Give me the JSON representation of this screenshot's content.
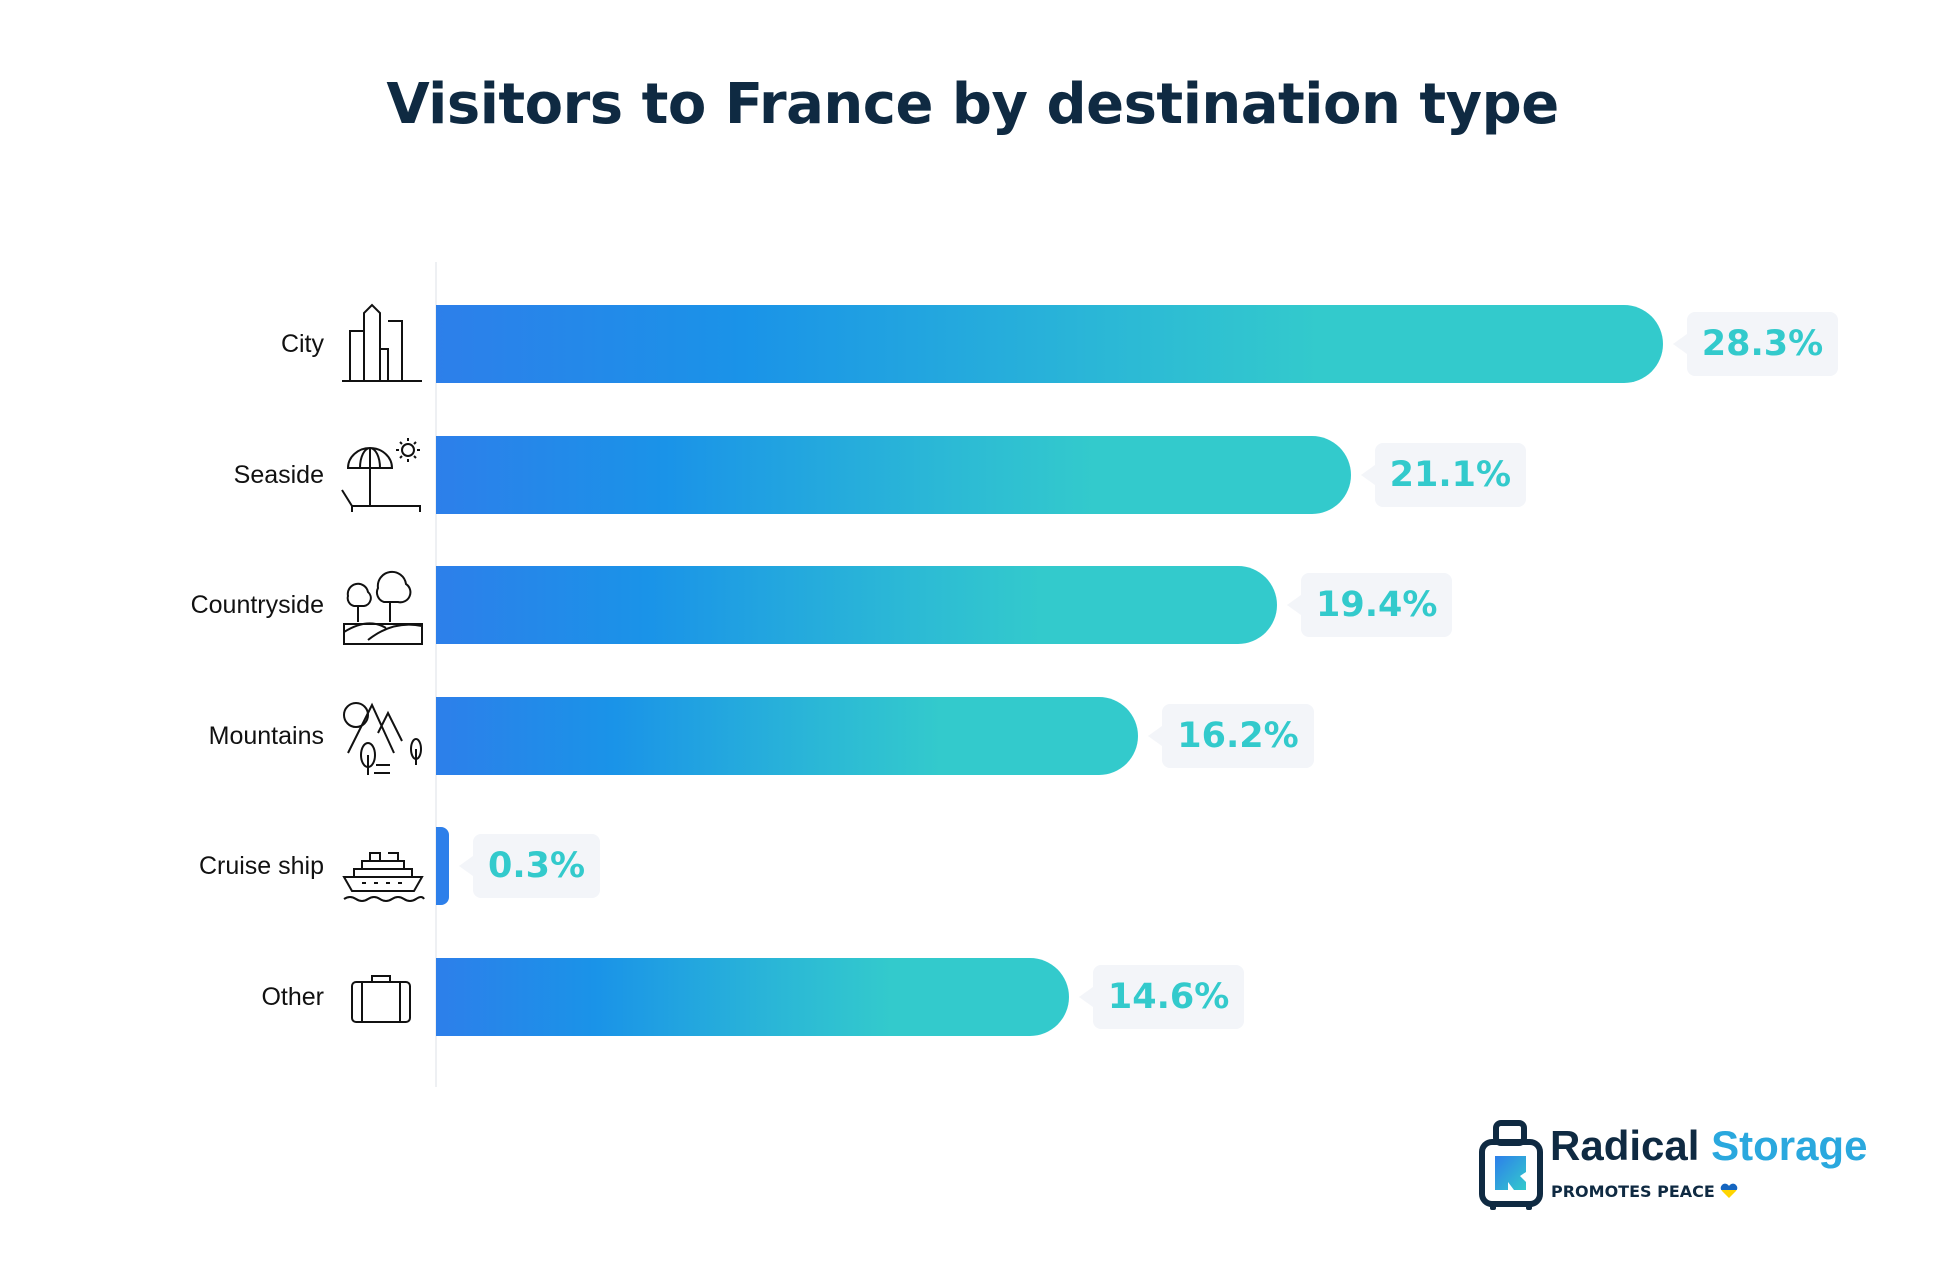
{
  "title": "Visitors to France by destination type",
  "chart_data": {
    "type": "bar",
    "orientation": "horizontal",
    "title": "Visitors to France by destination type",
    "categories": [
      "City",
      "Seaside",
      "Countryside",
      "Mountains",
      "Cruise ship",
      "Other"
    ],
    "values": [
      28.3,
      21.1,
      19.4,
      16.2,
      0.3,
      14.6
    ],
    "labels": [
      "28.3%",
      "21.1%",
      "19.4%",
      "16.2%",
      "0.3%",
      "14.6%"
    ],
    "icons": [
      "city-buildings-icon",
      "beach-umbrella-icon",
      "trees-icon",
      "mountains-icon",
      "cruise-ship-icon",
      "suitcase-icon"
    ],
    "unit": "%",
    "xlabel": "",
    "ylabel": "",
    "grid": false,
    "colors": {
      "gradient_start": "#2d7fea",
      "gradient_mid": "#1a93e8",
      "gradient_end": "#33cacc",
      "label_bg": "#f3f5f9",
      "label_text": "#33cacc"
    }
  },
  "logo": {
    "name_part1": "Radical",
    "name_part2": "Storage",
    "tagline": "PROMOTES PEACE"
  }
}
